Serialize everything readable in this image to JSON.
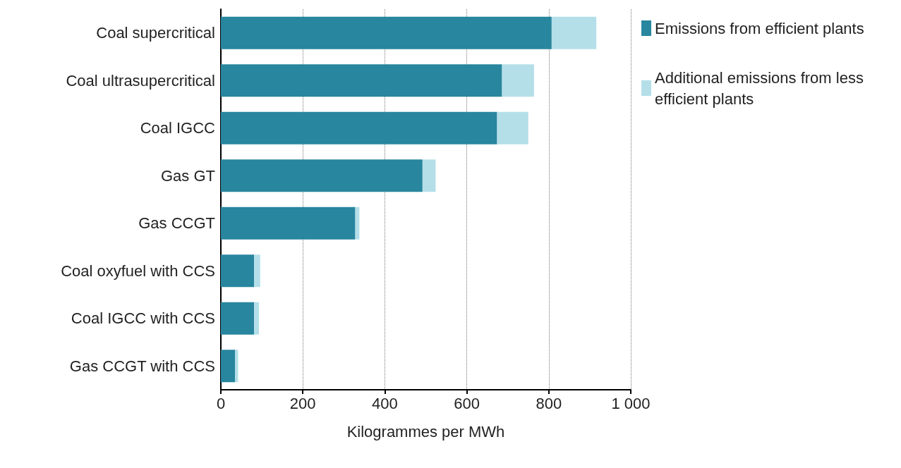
{
  "chart_data": {
    "type": "bar",
    "orientation": "horizontal",
    "stacked": true,
    "xlabel": "Kilogrammes per MWh",
    "categories": [
      "Coal supercritical",
      "Coal ultrasupercritical",
      "Coal IGCC",
      "Gas GT",
      "Gas CCGT",
      "Coal oxyfuel with CCS",
      "Coal IGCC with CCS",
      "Gas CCGT with CCS"
    ],
    "series": [
      {
        "name": "Emissions from efficient plants",
        "color": "#28869e",
        "values": [
          807,
          686,
          674,
          492,
          328,
          81,
          81,
          35
        ]
      },
      {
        "name": "Additional emissions from less efficient plants",
        "color": "#b4dfe9",
        "values": [
          109,
          78,
          76,
          32,
          10,
          15,
          12,
          7
        ]
      }
    ],
    "xlim": [
      0,
      1000
    ],
    "xticks": [
      0,
      200,
      400,
      600,
      800,
      {
        "value": 1000,
        "label": "1 000"
      }
    ],
    "grid": "x",
    "legend": "top right"
  }
}
